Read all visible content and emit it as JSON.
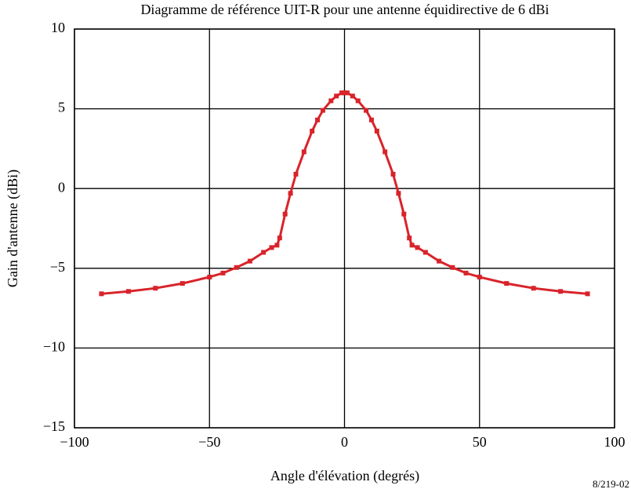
{
  "chart_data": {
    "type": "line",
    "title": "Diagramme de référence UIT-R pour une antenne équidirective de 6 dBi",
    "x_label": "Angle d'élévation (degrés)",
    "y_label": "Gain d'antenne (dBi)",
    "figure_id": "8/219-02",
    "x": [
      -90,
      -80,
      -70,
      -60,
      -50,
      -45,
      -40,
      -35,
      -30,
      -27,
      -25,
      -24,
      -22,
      -20,
      -18,
      -15,
      -12,
      -10,
      -8,
      -5,
      -3,
      -1,
      0,
      1,
      3,
      5,
      8,
      10,
      12,
      15,
      18,
      20,
      22,
      24,
      25,
      27,
      30,
      35,
      40,
      45,
      50,
      60,
      70,
      80,
      90
    ],
    "series": [
      {
        "name": "Gain",
        "color": "#d9232a",
        "values": [
          -6.6,
          -6.45,
          -6.25,
          -5.95,
          -5.55,
          -5.3,
          -4.95,
          -4.55,
          -4.0,
          -3.7,
          -3.55,
          -3.1,
          -1.6,
          -0.3,
          0.9,
          2.3,
          3.6,
          4.3,
          4.9,
          5.5,
          5.8,
          6.0,
          6.0,
          6.0,
          5.8,
          5.5,
          4.9,
          4.3,
          3.6,
          2.3,
          0.9,
          -0.3,
          -1.6,
          -3.1,
          -3.55,
          -3.7,
          -4.0,
          -4.55,
          -4.95,
          -5.3,
          -5.55,
          -5.95,
          -6.25,
          -6.45,
          -6.6
        ]
      }
    ],
    "xlim": [
      -100,
      100
    ],
    "xticks": [
      {
        "value": -100,
        "label": "−100"
      },
      {
        "value": -50,
        "label": "−50"
      },
      0,
      50,
      100
    ],
    "ylim": [
      -15,
      10
    ],
    "yticks": [
      {
        "value": -15,
        "label": "−15"
      },
      {
        "value": -10,
        "label": "−10"
      },
      {
        "value": -5,
        "label": "−5"
      },
      0,
      5,
      10
    ],
    "grid": true
  }
}
